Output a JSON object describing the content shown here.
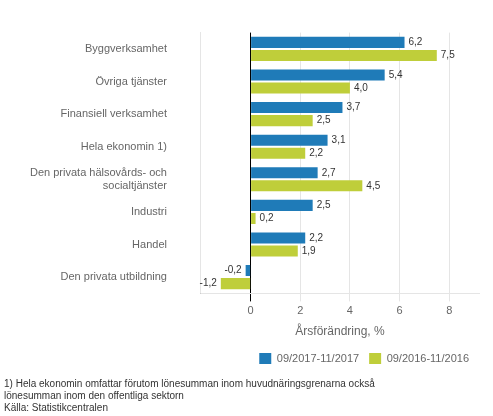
{
  "chart_data": {
    "type": "bar",
    "orientation": "horizontal",
    "categories": [
      "Byggverksamhet",
      "Övriga tjänster",
      "Finansiell verksamhet",
      "Hela ekonomin 1)",
      "Den privata hälsovårds- och\nsocialtjänster",
      "Industri",
      "Handel",
      "Den privata utbildning"
    ],
    "series": [
      {
        "name": "09/2017-11/2017",
        "color": "#1F7BB8",
        "values": [
          6.2,
          5.4,
          3.7,
          3.1,
          2.7,
          2.5,
          2.2,
          -0.2
        ],
        "value_labels": [
          "6,2",
          "5,4",
          "3,7",
          "3,1",
          "2,7",
          "2,5",
          "2,2",
          "-0,2"
        ]
      },
      {
        "name": "09/2016-11/2016",
        "color": "#BFCE3A",
        "values": [
          7.5,
          4.0,
          2.5,
          2.2,
          4.5,
          0.2,
          1.9,
          -1.2
        ],
        "value_labels": [
          "7,5",
          "4,0",
          "2,5",
          "2,2",
          "4,5",
          "0,2",
          "1,9",
          "-1,2"
        ]
      }
    ],
    "xlabel": "Årsförändring, %",
    "xlim": [
      -2.0,
      9.2
    ],
    "xticks": [
      0,
      2,
      4,
      6,
      8
    ],
    "grid": true,
    "legend": "lower right",
    "data_labels": true,
    "annotations": [
      "1) Hela ekonomin omfattar förutom lönesumman inom huvudnäringsgrenarna också",
      "lönesumman inom den offentliga sektorn",
      "Källa: Statistikcentralen"
    ]
  }
}
